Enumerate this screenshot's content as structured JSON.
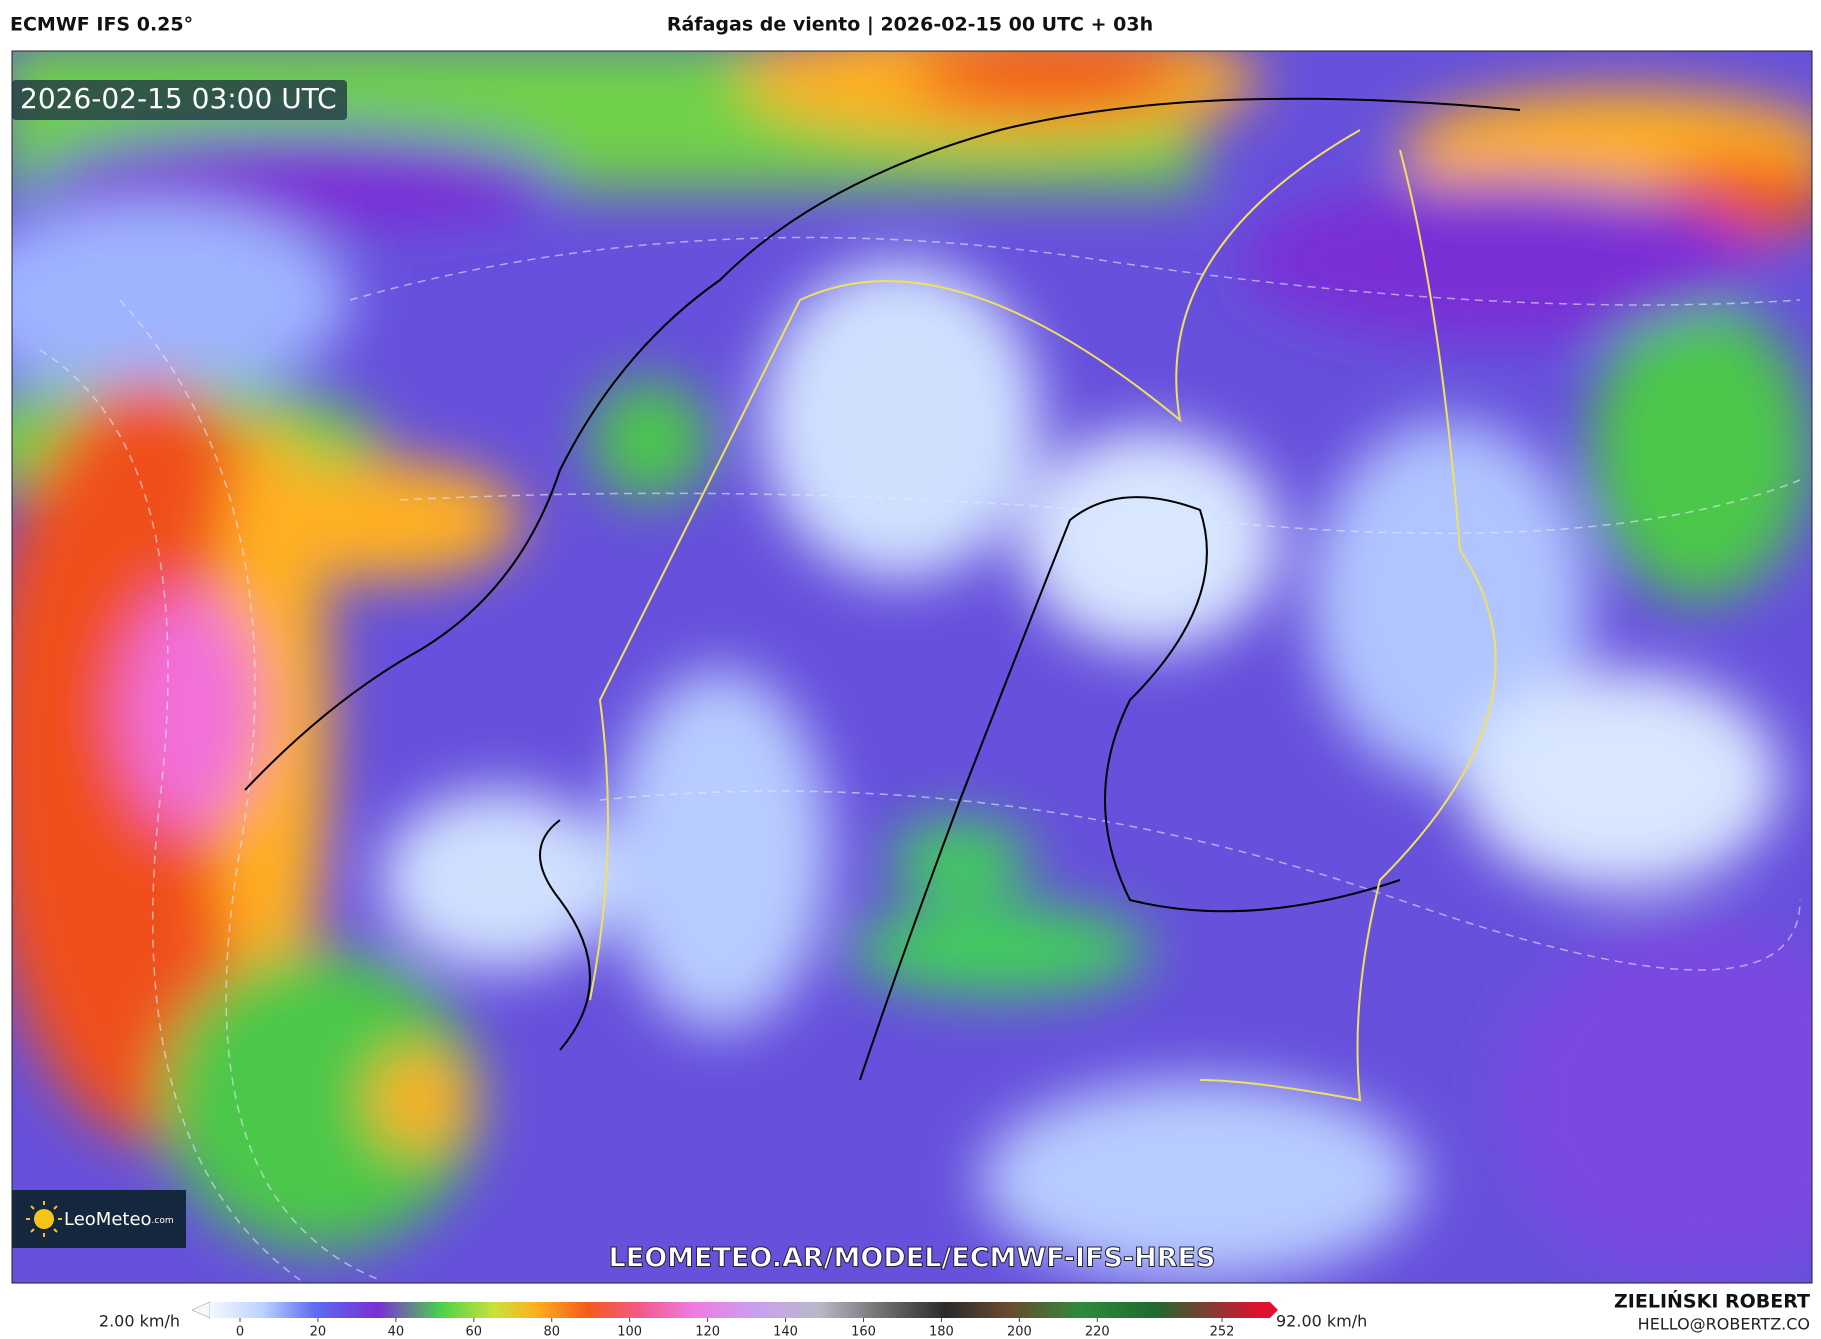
{
  "header": {
    "model": "ECMWF IFS 0.25°",
    "title": "Ráfagas de viento | 2026-02-15 00 UTC + 03h"
  },
  "map": {
    "timestamp": "2026-02-15 03:00 UTC",
    "watermark": "LEOMETEO.AR/MODEL/ECMWF-IFS-HRES"
  },
  "logo": {
    "name": "LeoMeteo",
    "suffix": ".com"
  },
  "colorbar": {
    "min_label": "2.00 km/h",
    "max_label": "92.00 km/h",
    "ticks": [
      0,
      20,
      40,
      60,
      80,
      100,
      120,
      140,
      160,
      180,
      200,
      220,
      252
    ]
  },
  "credit": {
    "name": "ZIELIŃSKI ROBERT",
    "email": "HELLO@ROBERTZ.CO"
  }
}
